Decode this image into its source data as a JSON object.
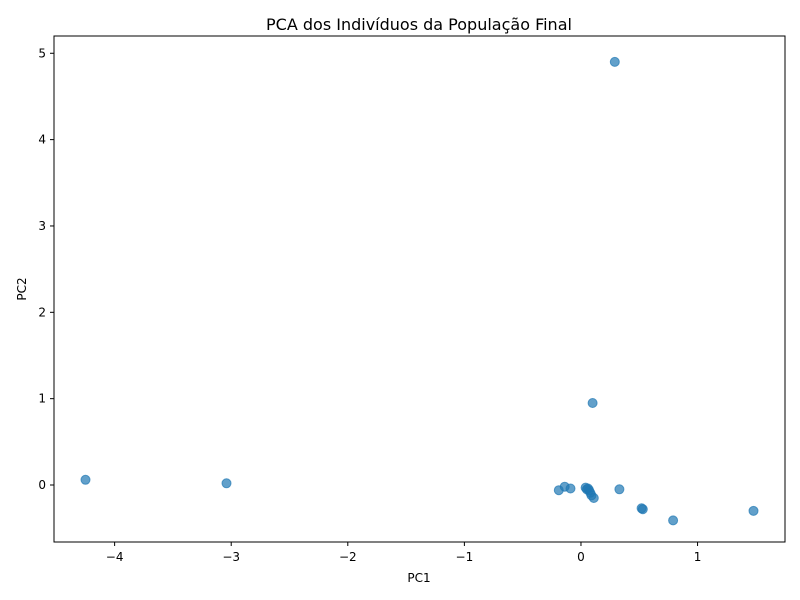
{
  "chart_data": {
    "type": "scatter",
    "title": "PCA dos Indivíduos da População Final",
    "xlabel": "PC1",
    "ylabel": "PC2",
    "xlim": [
      -4.52,
      1.75
    ],
    "ylim": [
      -0.66,
      5.2
    ],
    "xticks": [
      -4,
      -3,
      -2,
      -1,
      0,
      1
    ],
    "yticks": [
      0,
      1,
      2,
      3,
      4,
      5
    ],
    "grid": false,
    "marker_color": "#1f77b4",
    "marker_opacity": 0.7,
    "points": [
      {
        "x": -4.25,
        "y": 0.06
      },
      {
        "x": -3.04,
        "y": 0.02
      },
      {
        "x": 0.29,
        "y": 4.9
      },
      {
        "x": 0.1,
        "y": 0.95
      },
      {
        "x": -0.19,
        "y": -0.06
      },
      {
        "x": -0.14,
        "y": -0.02
      },
      {
        "x": -0.09,
        "y": -0.04
      },
      {
        "x": 0.04,
        "y": -0.03
      },
      {
        "x": 0.05,
        "y": -0.05
      },
      {
        "x": 0.06,
        "y": -0.04
      },
      {
        "x": 0.07,
        "y": -0.06
      },
      {
        "x": 0.08,
        "y": -0.09
      },
      {
        "x": 0.09,
        "y": -0.12
      },
      {
        "x": 0.11,
        "y": -0.15
      },
      {
        "x": 0.33,
        "y": -0.05
      },
      {
        "x": 0.52,
        "y": -0.27
      },
      {
        "x": 0.53,
        "y": -0.28
      },
      {
        "x": 0.79,
        "y": -0.41
      },
      {
        "x": 1.48,
        "y": -0.3
      }
    ]
  }
}
